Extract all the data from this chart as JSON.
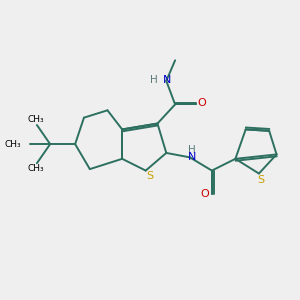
{
  "bg_color": "#efefef",
  "bond_color": "#2d7060",
  "S_color": "#c8a000",
  "N_color": "#0000cc",
  "O_color": "#cc0000",
  "H_color": "#5a7a7a",
  "line_width": 1.4,
  "dbo": 0.06,
  "xlim": [
    0,
    10
  ],
  "ylim": [
    0,
    10
  ]
}
